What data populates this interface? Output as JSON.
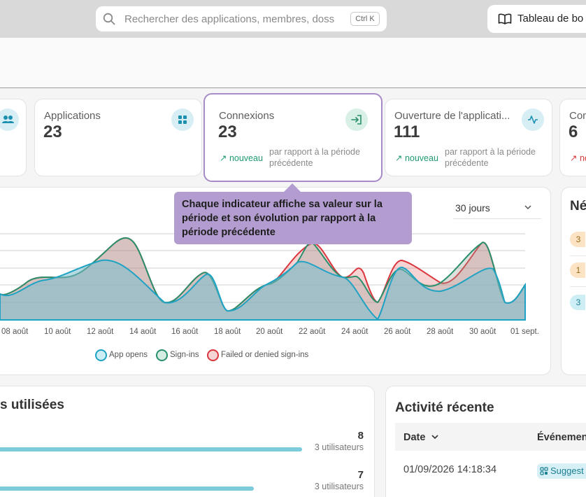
{
  "search": {
    "placeholder": "Rechercher des applications, membres, doss",
    "shortcut": "Ctrl K"
  },
  "toolbar": {
    "dashboard_label": "Tableau de bo"
  },
  "kpis": [
    {
      "title": "Applications",
      "value": "23"
    },
    {
      "title": "Connexions",
      "value": "23",
      "trend": "nouveau",
      "comparison": "par rapport à la période précédente"
    },
    {
      "title": "Ouverture de l'applicati...",
      "value": "111",
      "trend": "nouveau",
      "comparison": "par rapport à la période précédente"
    },
    {
      "title": "Con",
      "value": "6",
      "trend": "ne"
    }
  ],
  "tooltip": {
    "text": "Chaque indicateur affiche sa valeur sur la période et son évolution par rapport à la période précédente"
  },
  "activity_chart": {
    "period": "30 jours",
    "x_labels": [
      "08 août",
      "10 août",
      "12 août",
      "14 août",
      "16 août",
      "18 août",
      "20 août",
      "22 août",
      "24 août",
      "26 août",
      "28 août",
      "30 août",
      "01 sept."
    ],
    "legend": [
      {
        "label": "App opens",
        "color": "#1fa3c4"
      },
      {
        "label": "Sign-ins",
        "color": "#2a8f6c"
      },
      {
        "label": "Failed or denied sign-ins",
        "color": "#d9363e"
      }
    ]
  },
  "side_panel": {
    "title": "Né",
    "items": [
      "3",
      "1",
      "3"
    ]
  },
  "top_apps": {
    "title": "s utilisées",
    "rows": [
      {
        "count": "8",
        "users": "3 utilisateurs",
        "fill": 1.0
      },
      {
        "count": "7",
        "users": "3 utilisateurs",
        "fill": 0.84
      }
    ]
  },
  "recent_activity": {
    "title": "Activité récente",
    "columns": [
      "Date",
      "Événemen"
    ],
    "rows": [
      {
        "date": "01/09/2026 14:18:34",
        "event": "Suggest"
      }
    ]
  }
}
